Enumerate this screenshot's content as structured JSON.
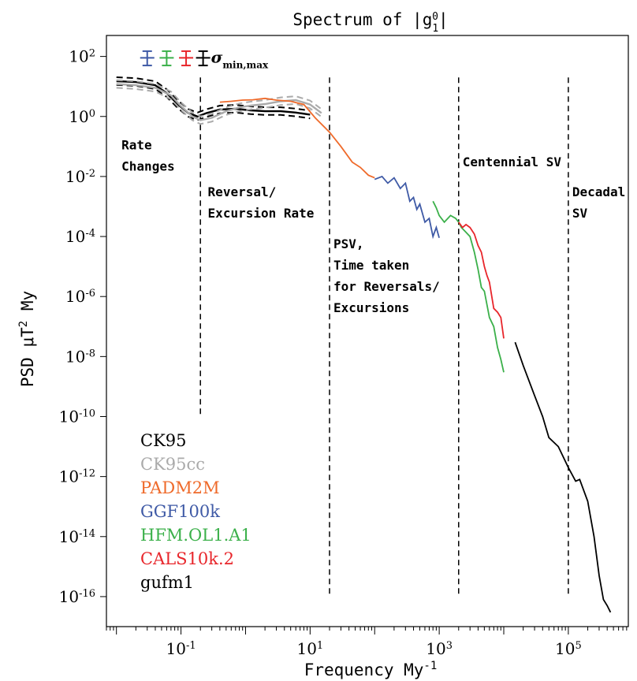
{
  "chart_data": {
    "type": "line",
    "title": "Spectrum of |g",
    "title_sub": "1",
    "title_sup": "0",
    "title_end": "|",
    "xlabel": "Frequency My",
    "xlabel_sup": "-1",
    "ylabel": "PSD   μT",
    "ylabel_sup": "2",
    "ylabel_end": " My",
    "x_scale": "log",
    "y_scale": "log",
    "xlim": [
      0.007,
      850000
    ],
    "ylim": [
      1e-17,
      500.0
    ],
    "x_ticks": [
      {
        "value": 0.1,
        "base": "10",
        "exp": "-1"
      },
      {
        "value": 10,
        "base": "10",
        "exp": "1"
      },
      {
        "value": 1000,
        "base": "10",
        "exp": "3"
      },
      {
        "value": 100000,
        "base": "10",
        "exp": "5"
      }
    ],
    "y_ticks": [
      {
        "value": 100.0,
        "base": "10",
        "exp": "2"
      },
      {
        "value": 1.0,
        "base": "10",
        "exp": "0"
      },
      {
        "value": 0.01,
        "base": "10",
        "exp": "-2"
      },
      {
        "value": 0.0001,
        "base": "10",
        "exp": "-4"
      },
      {
        "value": 1e-06,
        "base": "10",
        "exp": "-6"
      },
      {
        "value": 1e-08,
        "base": "10",
        "exp": "-8"
      },
      {
        "value": 1e-10,
        "base": "10",
        "exp": "-10"
      },
      {
        "value": 1e-12,
        "base": "10",
        "exp": "-12"
      },
      {
        "value": 1e-14,
        "base": "10",
        "exp": "-14"
      },
      {
        "value": 1e-16,
        "base": "10",
        "exp": "-16"
      }
    ],
    "regions": [
      {
        "x": 0.2,
        "y_bottom": 1e-10,
        "label": [
          "Rate",
          "Changes"
        ],
        "label_x": 0.012,
        "label_y": 0.08
      },
      {
        "x": 20,
        "y_bottom": 1e-16,
        "label": [
          "Reversal/",
          "Excursion Rate"
        ],
        "label_x": 0.26,
        "label_y": 0.0022
      },
      {
        "x": 2000,
        "y_bottom": 1e-16,
        "label": [
          "PSV,",
          "Time taken",
          "for Reversals/",
          "Excursions"
        ],
        "label_x": 23,
        "label_y": 4e-05
      },
      {
        "x": 100000,
        "y_bottom": 1e-16,
        "label": [
          "Centennial SV"
        ],
        "label_x": 2300,
        "label_y": 0.022
      },
      {
        "x": 100000,
        "y_bottom": 1e-16,
        "label": [
          "Decadal",
          "SV"
        ],
        "label_x": 115000,
        "label_y": 0.0022
      }
    ],
    "error_bar_label": "σ",
    "error_bar_label_sub": "min,max",
    "error_bars": [
      {
        "series": "GGF100k",
        "color": "#3f5aa6",
        "x": 0.03
      },
      {
        "series": "HFM.OL1.A1",
        "color": "#3bb04a",
        "x": 0.06
      },
      {
        "series": "CALS10k.2",
        "color": "#e8262b",
        "x": 0.12
      },
      {
        "series": "gufm1",
        "color": "#000000",
        "x": 0.22
      }
    ],
    "series": [
      {
        "name": "CK95",
        "color": "#000000",
        "style": "dashed-band",
        "x": [
          0.01,
          0.02,
          0.04,
          0.06,
          0.09,
          0.13,
          0.18,
          0.25,
          0.4,
          0.7,
          1.2,
          2,
          3.5,
          6,
          10
        ],
        "y": [
          15,
          14,
          11,
          6,
          2.5,
          1.3,
          1.0,
          1.3,
          1.7,
          1.8,
          1.6,
          1.5,
          1.5,
          1.35,
          1.15
        ]
      },
      {
        "name": "CK95cc",
        "color": "#aaaaaa",
        "style": "dashed-band",
        "x": [
          0.01,
          0.02,
          0.04,
          0.07,
          0.1,
          0.15,
          0.2,
          0.3,
          0.5,
          0.8,
          1.2,
          2,
          3.5,
          6,
          10,
          15
        ],
        "y": [
          12,
          11,
          9,
          5,
          2.2,
          1.0,
          0.75,
          0.9,
          1.5,
          2.0,
          2.3,
          2.6,
          3.2,
          3.5,
          2.5,
          1.3
        ]
      },
      {
        "name": "PADM2M",
        "color": "#ef6a2a",
        "style": "solid",
        "x": [
          0.4,
          0.6,
          0.9,
          1.3,
          2,
          3,
          5,
          8,
          12,
          20,
          30,
          45,
          60,
          80,
          100
        ],
        "y": [
          3,
          3.2,
          3.5,
          3.6,
          4.0,
          3.5,
          3.2,
          2.5,
          0.9,
          0.3,
          0.1,
          0.03,
          0.02,
          0.011,
          0.009
        ]
      },
      {
        "name": "GGF100k",
        "color": "#3f5aa6",
        "style": "solid",
        "x": [
          100,
          130,
          160,
          200,
          250,
          300,
          350,
          400,
          450,
          500,
          600,
          700,
          800,
          900,
          1000
        ],
        "y": [
          0.008,
          0.01,
          0.006,
          0.009,
          0.004,
          0.006,
          0.0015,
          0.002,
          0.0008,
          0.0012,
          0.0003,
          0.0004,
          0.0001,
          0.0002,
          9e-05
        ]
      },
      {
        "name": "HFM.OL1.A1",
        "color": "#3bb04a",
        "style": "solid",
        "x": [
          800,
          900,
          1000,
          1200,
          1500,
          1800,
          2000,
          2200,
          2500,
          3000,
          3500,
          4000,
          4500,
          5000,
          6000,
          7000,
          8000,
          9000,
          10000
        ],
        "y": [
          0.0015,
          0.0009,
          0.0005,
          0.0003,
          0.0005,
          0.0004,
          0.0003,
          0.0002,
          0.00015,
          0.0001,
          3e-05,
          8e-06,
          2e-06,
          1.5e-06,
          2e-07,
          1e-07,
          2e-08,
          8e-09,
          3e-09
        ]
      },
      {
        "name": "CALS10k.2",
        "color": "#e8262b",
        "style": "solid",
        "x": [
          2000,
          2300,
          2600,
          3000,
          3500,
          4000,
          4500,
          5000,
          5500,
          6000,
          7000,
          8000,
          9000,
          10000
        ],
        "y": [
          0.0003,
          0.0002,
          0.00025,
          0.0002,
          0.00012,
          5e-05,
          3e-05,
          1e-05,
          5e-06,
          3e-06,
          4e-07,
          3e-07,
          2e-07,
          4e-08
        ]
      },
      {
        "name": "gufm1",
        "color": "#000000",
        "style": "solid",
        "x": [
          15000,
          20000,
          30000,
          40000,
          50000,
          70000,
          100000,
          130000,
          150000,
          200000,
          250000,
          300000,
          350000,
          400000,
          450000
        ],
        "y": [
          3e-08,
          5e-09,
          5e-10,
          1e-10,
          2e-11,
          1e-11,
          2e-12,
          7e-13,
          8e-13,
          1.5e-13,
          1e-14,
          5e-16,
          8e-17,
          5e-17,
          3e-17
        ]
      }
    ]
  }
}
